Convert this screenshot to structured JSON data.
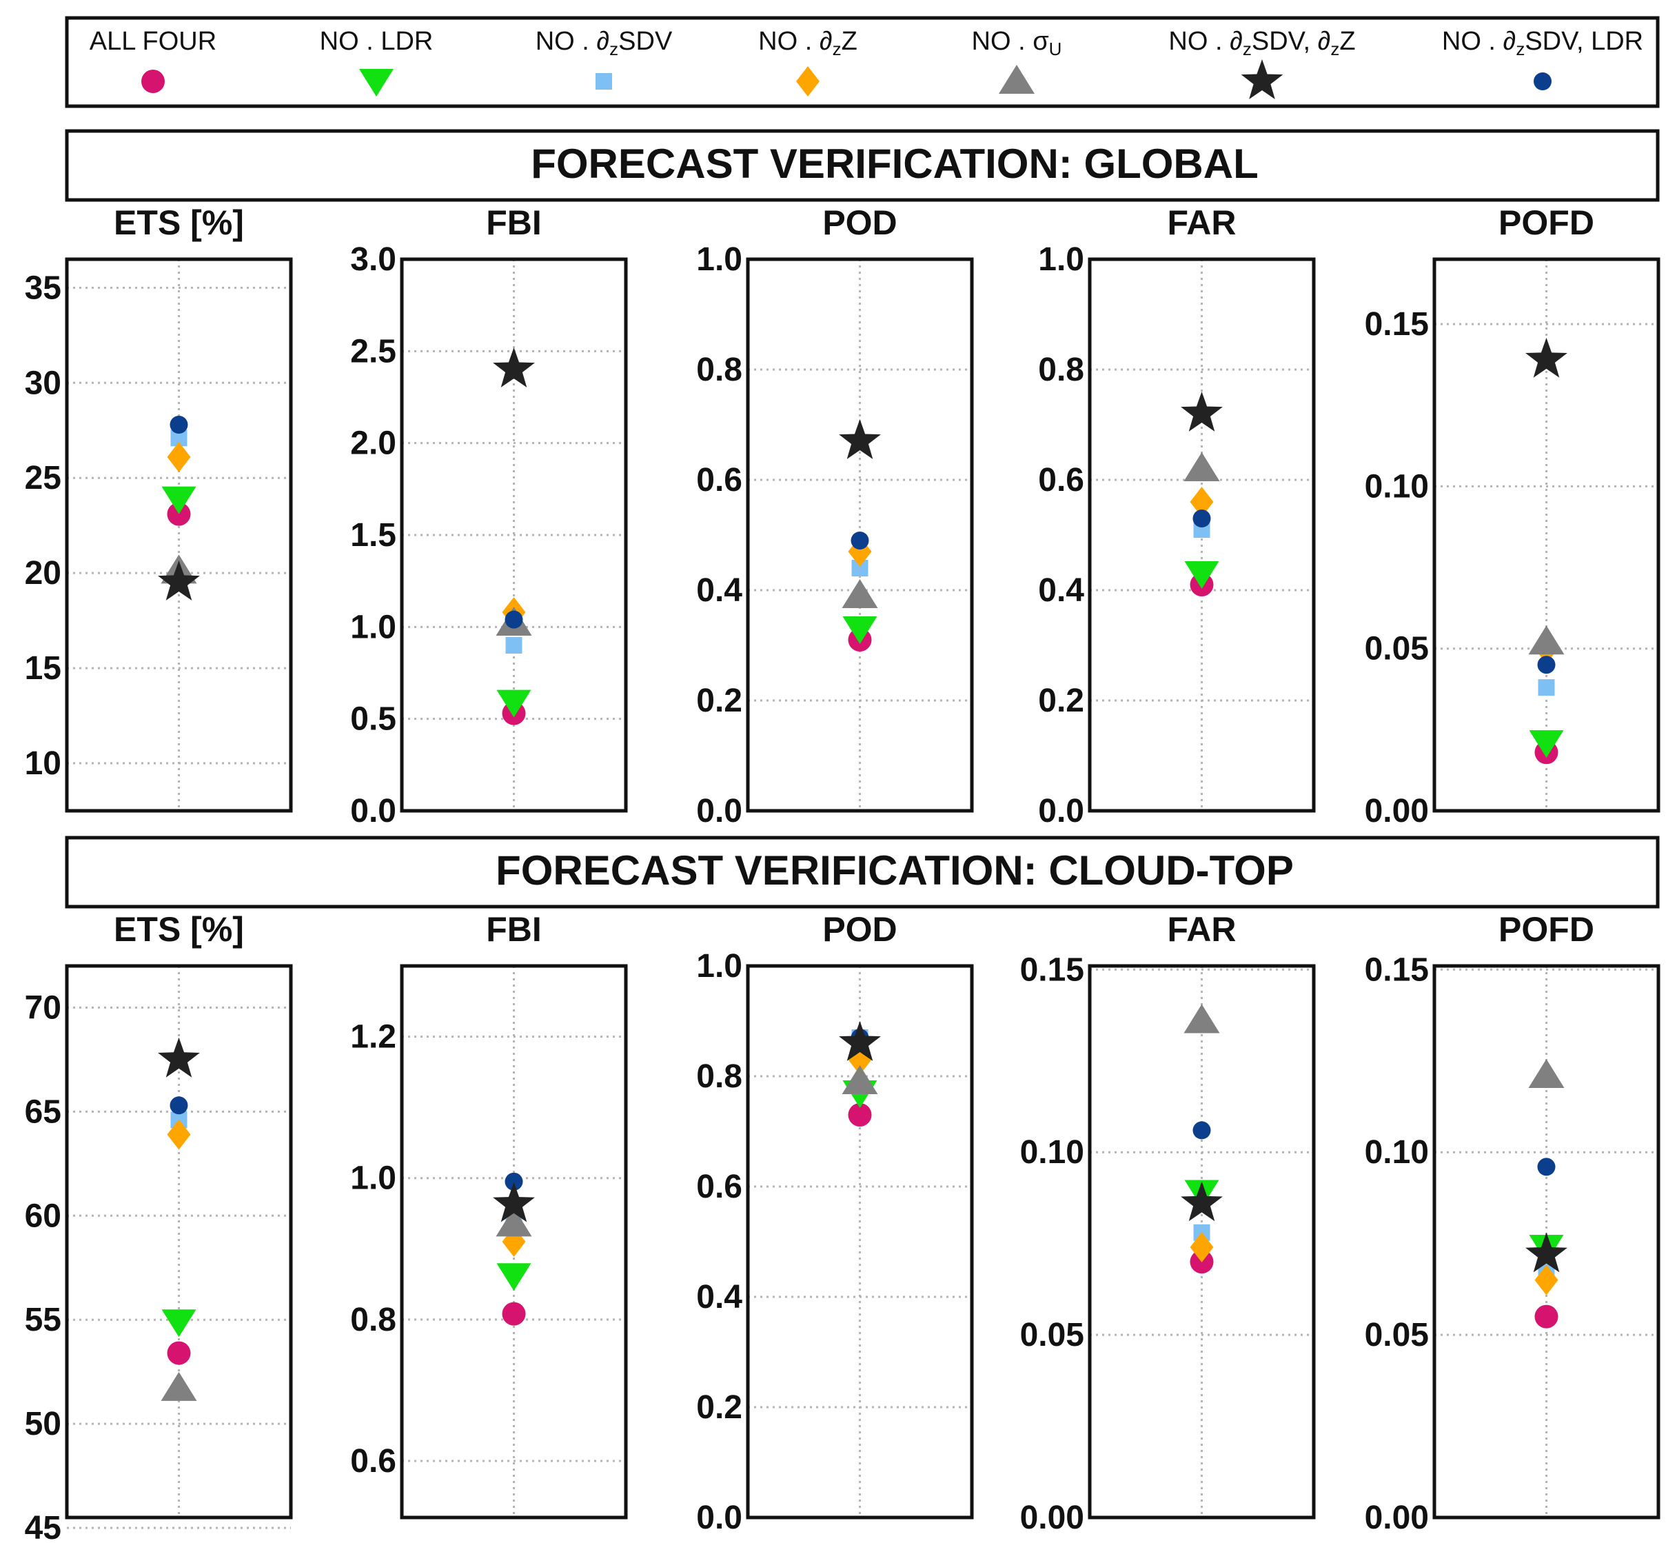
{
  "legend": {
    "items": [
      {
        "key": "all",
        "label_html": "ALL FOUR",
        "label_text": "ALL FOUR",
        "marker": "circle",
        "color": "#D6136E"
      },
      {
        "key": "noldr",
        "label_html": "NO . LDR",
        "label_text": "NO . LDR",
        "marker": "triangle-down",
        "color": "#11E011"
      },
      {
        "key": "nodzsdv",
        "label_html": "NO . ∂<tspan font-size='26' dy='8'>z</tspan><tspan dy='-8'>SDV</tspan>",
        "label_text": "NO . ∂zSDV",
        "marker": "square",
        "color": "#7EC0F4"
      },
      {
        "key": "nodzz",
        "label_html": "NO . ∂<tspan font-size='26' dy='8'>z</tspan><tspan dy='-8'>Z</tspan>",
        "label_text": "NO . ∂zZ",
        "marker": "diamond",
        "color": "#FFA500"
      },
      {
        "key": "nosigma",
        "label_html": "NO . σ<tspan font-size='26' dy='8'>U</tspan>",
        "label_text": "NO . σU",
        "marker": "triangle-up",
        "color": "#808080"
      },
      {
        "key": "nosdvz",
        "label_html": "NO . ∂<tspan font-size='26' dy='8'>z</tspan><tspan dy='-8'>SDV, ∂</tspan><tspan font-size='26' dy='8'>z</tspan><tspan dy='-8'>Z</tspan>",
        "label_text": "NO . ∂zSDV, ∂zZ",
        "marker": "star",
        "color": "#222222"
      },
      {
        "key": "nosdvldr",
        "label_html": "NO . ∂<tspan font-size='26' dy='8'>z</tspan><tspan dy='-8'>SDV, LDR</tspan>",
        "label_text": "NO . ∂zSDV, LDR",
        "marker": "small-circle",
        "color": "#0B3F8E"
      }
    ]
  },
  "chart_data": [
    {
      "section": "FORECAST VERIFICATION:  GLOBAL",
      "panels": [
        {
          "type": "scatter",
          "title": "ETS [%]",
          "ylim": [
            7.5,
            36.5
          ],
          "yticks": [
            "10",
            "15",
            "20",
            "25",
            "30",
            "35"
          ],
          "values": {
            "all": 23.1,
            "noldr": 23.9,
            "nodzsdv": 27.1,
            "nodzz": 26.1,
            "nosigma": 20.1,
            "nosdvz": 19.5,
            "nosdvldr": 27.8
          }
        },
        {
          "type": "scatter",
          "title": "FBI",
          "ylim": [
            0,
            3.0
          ],
          "yticks": [
            "0.0",
            "0.5",
            "1.0",
            "1.5",
            "2.0",
            "2.5",
            "3.0"
          ],
          "values": {
            "all": 0.53,
            "noldr": 0.59,
            "nodzsdv": 0.9,
            "nodzz": 1.08,
            "nosigma": 1.02,
            "nosdvz": 2.4,
            "nosdvldr": 1.04
          }
        },
        {
          "type": "scatter",
          "title": "POD",
          "ylim": [
            0,
            1.0
          ],
          "yticks": [
            "0.0",
            "0.2",
            "0.4",
            "0.6",
            "0.8",
            "1.0"
          ],
          "values": {
            "all": 0.31,
            "noldr": 0.33,
            "nodzsdv": 0.44,
            "nodzz": 0.47,
            "nosigma": 0.39,
            "nosdvz": 0.67,
            "nosdvldr": 0.49
          }
        },
        {
          "type": "scatter",
          "title": "FAR",
          "ylim": [
            0,
            1.0
          ],
          "yticks": [
            "0.0",
            "0.2",
            "0.4",
            "0.6",
            "0.8",
            "1.0"
          ],
          "values": {
            "all": 0.41,
            "noldr": 0.43,
            "nodzsdv": 0.51,
            "nodzz": 0.56,
            "nosigma": 0.62,
            "nosdvz": 0.72,
            "nosdvldr": 0.53
          }
        },
        {
          "type": "scatter",
          "title": "POFD",
          "ylim": [
            0,
            0.17
          ],
          "yticks": [
            "0.00",
            "0.05",
            "0.10",
            "0.15"
          ],
          "values": {
            "all": 0.018,
            "noldr": 0.021,
            "nodzsdv": 0.038,
            "nodzz": 0.05,
            "nosigma": 0.052,
            "nosdvz": 0.139,
            "nosdvldr": 0.045
          }
        }
      ]
    },
    {
      "section": "FORECAST VERIFICATION:   CLOUD-TOP",
      "panels": [
        {
          "type": "scatter",
          "title": "ETS [%]",
          "ylim": [
            45.5,
            72
          ],
          "yticks": [
            "45",
            "50",
            "55",
            "60",
            "65",
            "70"
          ],
          "values": {
            "all": 53.4,
            "noldr": 54.9,
            "nodzsdv": 64.6,
            "nodzz": 63.9,
            "nosigma": 51.7,
            "nosdvz": 67.5,
            "nosdvldr": 65.3
          }
        },
        {
          "type": "scatter",
          "title": "FBI",
          "ylim": [
            0.52,
            1.3
          ],
          "yticks": [
            "0.6",
            "0.8",
            "1.0",
            "1.2"
          ],
          "values": {
            "all": 0.808,
            "noldr": 0.862,
            "nodzsdv": 0.935,
            "nodzz": 0.91,
            "nosigma": 0.935,
            "nosdvz": 0.963,
            "nosdvldr": 0.995
          }
        },
        {
          "type": "scatter",
          "title": "POD",
          "ylim": [
            0,
            1.0
          ],
          "yticks": [
            "0.0",
            "0.2",
            "0.4",
            "0.6",
            "0.8",
            "1.0"
          ],
          "values": {
            "all": 0.73,
            "noldr": 0.77,
            "nodzsdv": 0.87,
            "nodzz": 0.83,
            "nosigma": 0.79,
            "nosdvz": 0.86,
            "nosdvldr": 0.87
          }
        },
        {
          "type": "scatter",
          "title": "FAR",
          "ylim": [
            0,
            0.151
          ],
          "yticks": [
            "0.00",
            "0.05",
            "0.10",
            "0.15"
          ],
          "values": {
            "all": 0.07,
            "noldr": 0.089,
            "nodzsdv": 0.078,
            "nodzz": 0.074,
            "nosigma": 0.136,
            "nosdvz": 0.086,
            "nosdvldr": 0.106
          }
        },
        {
          "type": "scatter",
          "title": "POFD",
          "ylim": [
            0,
            0.151
          ],
          "yticks": [
            "0.00",
            "0.05",
            "0.10",
            "0.15"
          ],
          "values": {
            "all": 0.055,
            "noldr": 0.074,
            "nodzsdv": 0.068,
            "nodzz": 0.065,
            "nosigma": 0.121,
            "nosdvz": 0.072,
            "nosdvldr": 0.096
          }
        }
      ]
    }
  ]
}
